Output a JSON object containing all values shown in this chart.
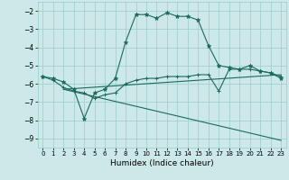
{
  "xlabel": "Humidex (Indice chaleur)",
  "x_ticks": [
    0,
    1,
    2,
    3,
    4,
    5,
    6,
    7,
    8,
    9,
    10,
    11,
    12,
    13,
    14,
    15,
    16,
    17,
    18,
    19,
    20,
    21,
    22,
    23
  ],
  "ylim": [
    -9.5,
    -1.5
  ],
  "xlim": [
    -0.5,
    23.5
  ],
  "yticks": [
    -9,
    -8,
    -7,
    -6,
    -5,
    -4,
    -3,
    -2
  ],
  "bg_color": "#cce8e8",
  "grid_color": "#99cccc",
  "line_color": "#1a6b5a",
  "line1_x": [
    0,
    1,
    2,
    3,
    4,
    5,
    6,
    7,
    8,
    9,
    10,
    11,
    12,
    13,
    14,
    15,
    16,
    17,
    18,
    19,
    20,
    21,
    22,
    23
  ],
  "line1_y": [
    -5.6,
    -5.7,
    -5.9,
    -6.3,
    -7.9,
    -6.5,
    -6.3,
    -5.7,
    -3.7,
    -2.2,
    -2.2,
    -2.4,
    -2.1,
    -2.3,
    -2.3,
    -2.5,
    -3.9,
    -5.0,
    -5.1,
    -5.2,
    -5.0,
    -5.3,
    -5.4,
    -5.7
  ],
  "line2_x": [
    0,
    1,
    2,
    3,
    4,
    5,
    6,
    7,
    8,
    9,
    10,
    11,
    12,
    13,
    14,
    15,
    16,
    17,
    18,
    19,
    20,
    21,
    22,
    23
  ],
  "line2_y": [
    -5.6,
    -5.8,
    -6.2,
    -6.4,
    -6.5,
    -6.8,
    -6.6,
    -6.5,
    -6.0,
    -5.8,
    -5.7,
    -5.7,
    -5.6,
    -5.6,
    -5.6,
    -5.5,
    -5.5,
    -6.4,
    -5.2,
    -5.2,
    -5.2,
    -5.3,
    -5.4,
    -5.6
  ],
  "line3_x": [
    2,
    23
  ],
  "line3_y": [
    -6.3,
    -9.1
  ],
  "line4_x": [
    2,
    23
  ],
  "line4_y": [
    -6.3,
    -5.5
  ]
}
